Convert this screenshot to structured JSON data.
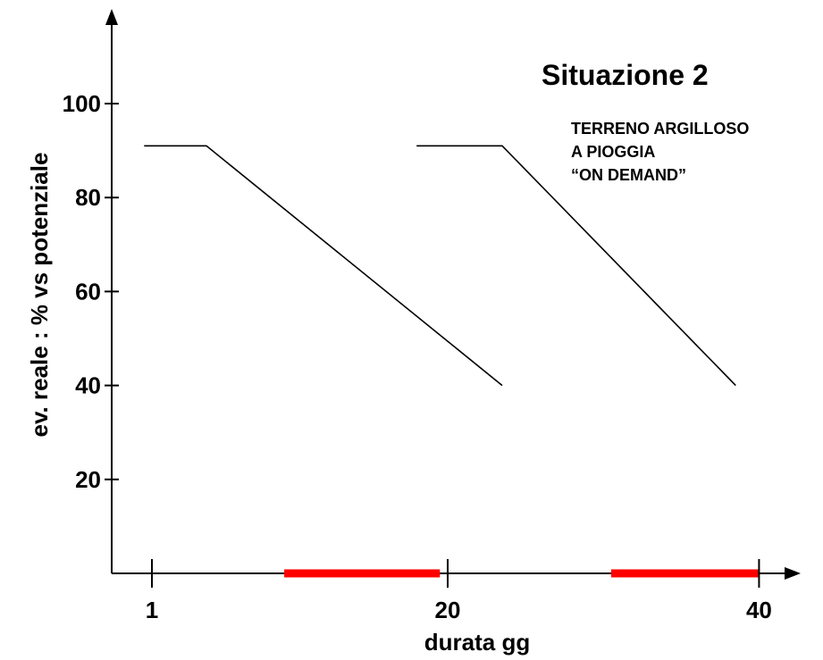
{
  "chart_data": {
    "type": "line",
    "title": "Situazione 2",
    "annotation_lines": [
      "TERRENO ARGILLOSO",
      "A PIOGGIA",
      "“ON DEMAND”"
    ],
    "xlabel": "durata gg",
    "ylabel": "ev. reale : % vs potenziale",
    "x_ticks": [
      1,
      20,
      40
    ],
    "y_ticks": [
      20,
      40,
      60,
      80,
      100
    ],
    "xlim": [
      -1.5,
      45
    ],
    "ylim": [
      0,
      115
    ],
    "grid": false,
    "series": [
      {
        "x": [
          0.5,
          4.5,
          23.5
        ],
        "y": [
          91,
          91,
          40
        ]
      },
      {
        "x": [
          18,
          23.5,
          38.5
        ],
        "y": [
          91,
          91,
          40
        ]
      }
    ],
    "highlight_segments": [
      {
        "x": [
          9.5,
          19.5
        ]
      },
      {
        "x": [
          30.5,
          40
        ]
      }
    ],
    "colors": {
      "line": "#000000",
      "axis": "#000000",
      "highlight": "#ff0000"
    }
  }
}
